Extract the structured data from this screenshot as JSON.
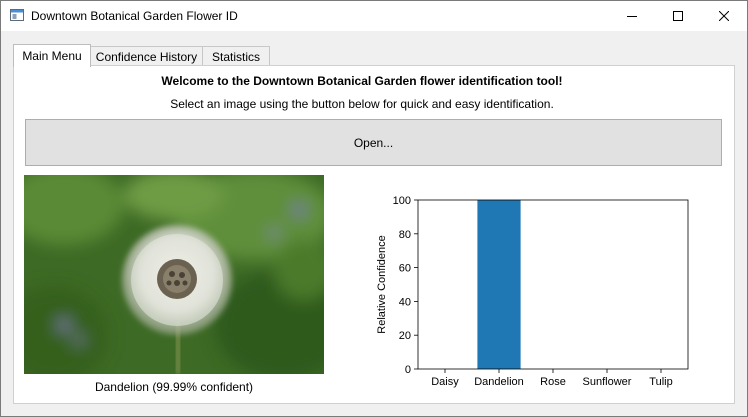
{
  "window": {
    "title": "Downtown Botanical Garden Flower ID",
    "controls": [
      "minimize",
      "maximize",
      "close"
    ]
  },
  "tabs": [
    {
      "label": "Main Menu",
      "active": true
    },
    {
      "label": "Confidence History",
      "active": false
    },
    {
      "label": "Statistics",
      "active": false
    }
  ],
  "main": {
    "welcome": "Welcome to the Downtown Botanical Garden flower identification tool!",
    "instructions": "Select an image using the button below for quick and easy identification.",
    "open_label": "Open...",
    "caption": "Dandelion (99.99% confident)"
  },
  "chart_data": {
    "type": "bar",
    "categories": [
      "Daisy",
      "Dandelion",
      "Rose",
      "Sunflower",
      "Tulip"
    ],
    "values": [
      0,
      99.99,
      0,
      0,
      0
    ],
    "ylabel": "Relative Confidence",
    "ylim": [
      0,
      100
    ],
    "yticks": [
      0,
      20,
      40,
      60,
      80,
      100
    ],
    "bar_color": "#1f77b4",
    "grid": false
  }
}
